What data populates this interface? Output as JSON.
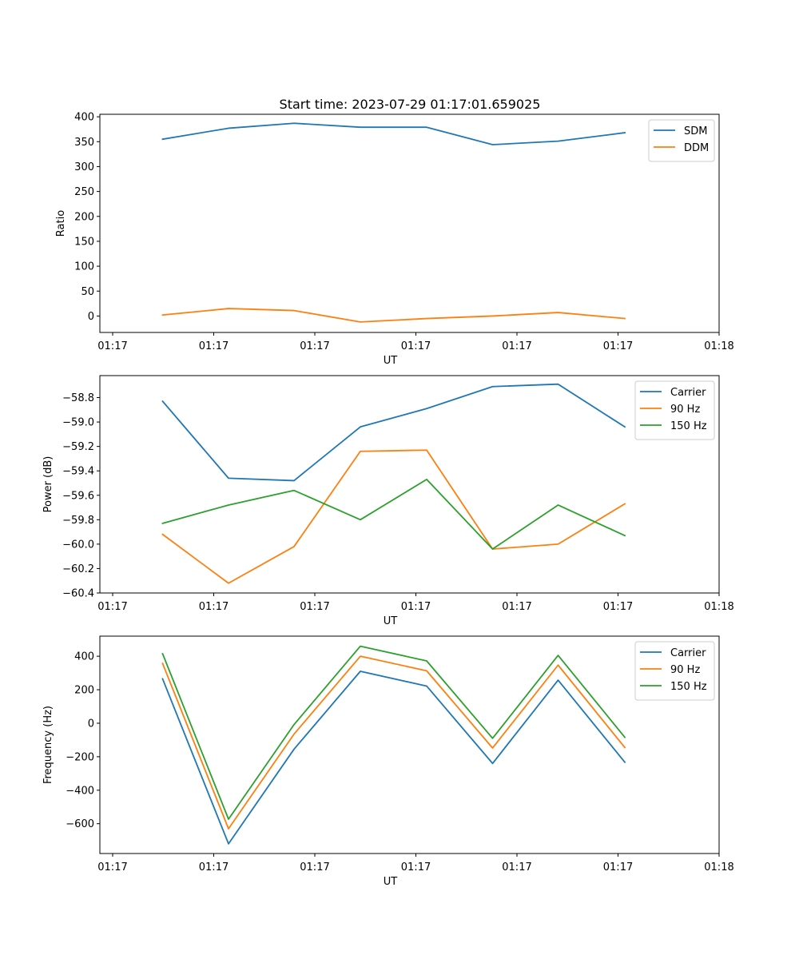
{
  "figure": {
    "title": "Start time: 2023-07-29 01:17:01.659025"
  },
  "colors": {
    "blue": "#1f77b4",
    "orange": "#ff7f0e",
    "green": "#2ca02c"
  },
  "chart_data": [
    {
      "type": "line",
      "title": "Start time: 2023-07-29 01:17:01.659025",
      "xlabel": "UT",
      "ylabel": "Ratio",
      "x": [
        1,
        2,
        3,
        4,
        5,
        6,
        7,
        8
      ],
      "xlim": [
        0.25,
        9.5
      ],
      "xticks": [
        0.25,
        1.77,
        3.29,
        4.81,
        6.33,
        7.85,
        9.37,
        9.5
      ],
      "xtick_labels": [
        "01:17",
        "01:17",
        "01:17",
        "01:17",
        "01:17",
        "01:17",
        "01:17",
        "01:18"
      ],
      "ylim": [
        -33,
        405
      ],
      "yticks": [
        0,
        50,
        100,
        150,
        200,
        250,
        300,
        350,
        400
      ],
      "ytick_labels": [
        "0",
        "50",
        "100",
        "150",
        "200",
        "250",
        "300",
        "350",
        "400"
      ],
      "legend_position": "top-right",
      "series": [
        {
          "name": "SDM",
          "color": "#1f77b4",
          "values": [
            355,
            377,
            387,
            379,
            379,
            344,
            351,
            368
          ]
        },
        {
          "name": "DDM",
          "color": "#ff7f0e",
          "values": [
            2,
            15,
            11,
            -12,
            -5,
            0,
            7,
            -5
          ]
        }
      ]
    },
    {
      "type": "line",
      "xlabel": "UT",
      "ylabel": "Power (dB)",
      "x": [
        1,
        2,
        3,
        4,
        5,
        6,
        7,
        8
      ],
      "xlim": [
        0.25,
        9.5
      ],
      "xticks": [
        0.25,
        1.77,
        3.29,
        4.81,
        6.33,
        7.85,
        9.37,
        9.5
      ],
      "xtick_labels": [
        "01:17",
        "01:17",
        "01:17",
        "01:17",
        "01:17",
        "01:17",
        "01:17",
        "01:18"
      ],
      "ylim": [
        -60.4,
        -58.62
      ],
      "yticks": [
        -60.4,
        -60.2,
        -60.0,
        -59.8,
        -59.6,
        -59.4,
        -59.2,
        -59.0,
        -58.8
      ],
      "ytick_labels": [
        "−60.4",
        "−60.2",
        "−60.0",
        "−59.8",
        "−59.6",
        "−59.4",
        "−59.2",
        "−59.0",
        "−58.8"
      ],
      "legend_position": "top-right",
      "series": [
        {
          "name": "Carrier",
          "color": "#1f77b4",
          "values": [
            -58.83,
            -59.46,
            -59.48,
            -59.04,
            -58.89,
            -58.71,
            -58.69,
            -59.04
          ]
        },
        {
          "name": "90 Hz",
          "color": "#ff7f0e",
          "values": [
            -59.92,
            -60.32,
            -60.02,
            -59.24,
            -59.23,
            -60.04,
            -60.0,
            -59.67
          ]
        },
        {
          "name": "150 Hz",
          "color": "#2ca02c",
          "values": [
            -59.83,
            -59.68,
            -59.56,
            -59.8,
            -59.47,
            -60.04,
            -59.68,
            -59.93
          ]
        }
      ]
    },
    {
      "type": "line",
      "xlabel": "UT",
      "ylabel": "Frequency (Hz)",
      "x": [
        1,
        2,
        3,
        4,
        5,
        6,
        7,
        8
      ],
      "xlim": [
        0.25,
        9.5
      ],
      "xticks": [
        0.25,
        1.77,
        3.29,
        4.81,
        6.33,
        7.85,
        9.37,
        9.5
      ],
      "xtick_labels": [
        "01:17",
        "01:17",
        "01:17",
        "01:17",
        "01:17",
        "01:17",
        "01:17",
        "01:18"
      ],
      "ylim": [
        -778,
        520
      ],
      "yticks": [
        -600,
        -400,
        -200,
        0,
        200,
        400
      ],
      "ytick_labels": [
        "−600",
        "−400",
        "−200",
        "0",
        "200",
        "400"
      ],
      "legend_position": "top-right",
      "series": [
        {
          "name": "Carrier",
          "color": "#1f77b4",
          "values": [
            265,
            -720,
            -155,
            310,
            222,
            -240,
            257,
            -233
          ]
        },
        {
          "name": "90 Hz",
          "color": "#ff7f0e",
          "values": [
            357,
            -630,
            -65,
            400,
            313,
            -148,
            347,
            -145
          ]
        },
        {
          "name": "150 Hz",
          "color": "#2ca02c",
          "values": [
            415,
            -573,
            -8,
            460,
            372,
            -90,
            405,
            -84
          ]
        }
      ]
    }
  ]
}
